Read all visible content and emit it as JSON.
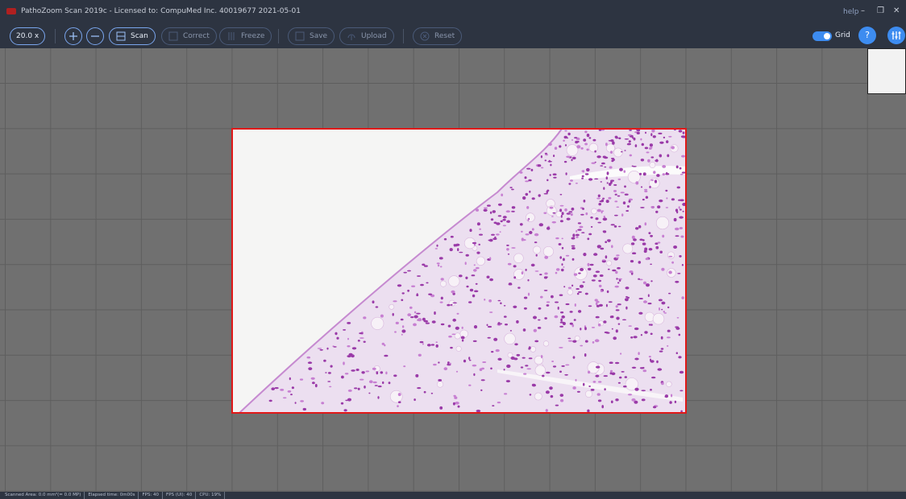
{
  "title_bar": {
    "title": "PathoZoom Scan 2019c  - Licensed to:  CompuMed Inc. 40019677 2021-05-01",
    "help": "help"
  },
  "toolbar": {
    "zoom": "20.0 x",
    "buttons": [
      "Scan",
      "Correct",
      "Freeze",
      "Save",
      "Upload",
      "Reset"
    ],
    "grid_toggle": "Grid",
    "help_button": "?"
  },
  "status_bar": {
    "items": [
      "Scanned Area: 0.0 mm²(= 0.0 MP)",
      "Elapsed time: 0m00s",
      "FPS: 40",
      "FPS (UI): 40",
      "CPU: 19%"
    ]
  }
}
